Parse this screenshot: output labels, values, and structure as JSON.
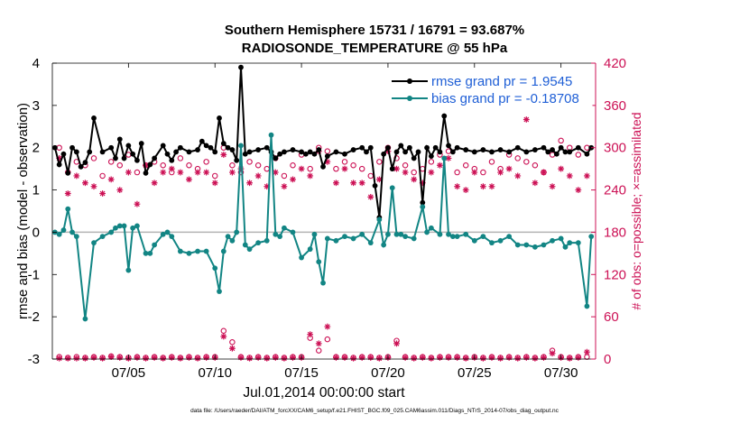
{
  "chart_data": {
    "type": "line",
    "title": "Southern Hemisphere 15731 / 16791 = 93.687%",
    "subtitle": "RADIOSONDE_TEMPERATURE @ 55 hPa",
    "xlabel": "Jul.01,2014 00:00:00 start",
    "ylabel": "rmse and bias (model - observation)",
    "ylabel_right": "# of obs: o=possible; ×=assimilated",
    "x_ticks": [
      "07/05",
      "07/10",
      "07/15",
      "07/20",
      "07/25",
      "07/30"
    ],
    "y_ticks": [
      "-3",
      "-2",
      "-1",
      "0",
      "1",
      "2",
      "3",
      "4"
    ],
    "y_right_ticks": [
      "0",
      "60",
      "120",
      "180",
      "240",
      "300",
      "360",
      "420"
    ],
    "xlim": [
      0.6,
      32.0
    ],
    "ylim": [
      -3,
      4
    ],
    "ylim_right": [
      0,
      420
    ],
    "zero_line_color": "#b4b4b4",
    "footer": "data file: /Users/raeder/DAI/ATM_forcXX/CAM6_setup/f.e21.FHIST_BGC.f09_025.CAM6assim.011/Diags_NTrS_2014-07/obs_diag_output.nc",
    "legend": {
      "position": "top-right",
      "entries": [
        "rmse grand pr = 1.9545",
        "bias grand pr = -0.18708"
      ],
      "text_color": "#1f5fd6"
    },
    "series": [
      {
        "name": "rmse grand pr = 1.9545",
        "axis": "left",
        "color": "#000000",
        "x": [
          0.75,
          1.0,
          1.25,
          1.5,
          1.75,
          2.0,
          2.25,
          2.5,
          2.75,
          3.0,
          3.5,
          4.0,
          4.25,
          4.5,
          4.75,
          5.0,
          5.25,
          5.5,
          5.75,
          6.0,
          6.25,
          6.5,
          7.0,
          7.25,
          7.5,
          7.75,
          8.0,
          8.5,
          9.0,
          9.25,
          9.5,
          9.75,
          10.0,
          10.25,
          10.5,
          10.75,
          11.0,
          11.25,
          11.5,
          11.75,
          12.0,
          12.5,
          13.0,
          13.25,
          13.5,
          13.75,
          14.0,
          14.5,
          15.0,
          15.25,
          15.5,
          15.75,
          16.0,
          16.25,
          16.5,
          17.0,
          17.5,
          18.0,
          18.5,
          18.75,
          19.0,
          19.25,
          19.5,
          19.75,
          20.0,
          20.25,
          20.5,
          20.75,
          21.0,
          21.25,
          21.5,
          21.75,
          22.0,
          22.25,
          22.5,
          22.75,
          23.0,
          23.25,
          23.5,
          23.75,
          24.0,
          24.5,
          25.0,
          25.5,
          26.0,
          26.5,
          27.0,
          27.5,
          28.0,
          28.5,
          29.0,
          29.25,
          29.5,
          29.75,
          30.0,
          30.25,
          30.5,
          31.0,
          31.5,
          31.75
        ],
        "values": [
          2.0,
          1.6,
          1.85,
          1.4,
          2.0,
          1.9,
          1.55,
          1.65,
          1.9,
          2.7,
          1.9,
          2.0,
          1.75,
          2.2,
          1.75,
          2.05,
          1.85,
          1.7,
          2.1,
          1.4,
          1.6,
          1.75,
          2.05,
          1.85,
          1.7,
          1.9,
          2.0,
          1.9,
          1.95,
          2.15,
          2.05,
          2.0,
          1.9,
          2.7,
          2.1,
          2.0,
          1.95,
          1.7,
          3.9,
          1.85,
          1.9,
          1.95,
          2.0,
          1.9,
          1.75,
          1.85,
          1.9,
          1.95,
          1.9,
          1.85,
          1.9,
          1.85,
          1.95,
          1.55,
          1.8,
          1.9,
          1.85,
          1.95,
          2.0,
          1.9,
          2.0,
          1.1,
          0.35,
          1.85,
          2.0,
          1.5,
          1.9,
          2.05,
          1.9,
          2.0,
          1.75,
          1.9,
          0.7,
          2.0,
          1.8,
          2.0,
          1.9,
          2.75,
          2.05,
          1.9,
          2.0,
          1.95,
          1.9,
          1.95,
          1.9,
          1.95,
          1.9,
          2.0,
          1.9,
          1.95,
          2.0,
          1.9,
          1.95,
          1.85,
          2.0,
          1.9,
          1.9,
          2.0,
          1.85,
          2.0
        ]
      },
      {
        "name": "bias grand pr = -0.18708",
        "axis": "left",
        "color": "#128584",
        "x": [
          0.75,
          1.0,
          1.25,
          1.5,
          1.75,
          2.0,
          2.5,
          3.0,
          3.5,
          4.0,
          4.25,
          4.5,
          4.75,
          5.0,
          5.25,
          5.5,
          6.0,
          6.25,
          6.5,
          7.0,
          7.25,
          7.5,
          8.0,
          8.5,
          9.0,
          9.5,
          10.0,
          10.25,
          10.5,
          10.75,
          11.0,
          11.25,
          11.5,
          11.75,
          12.0,
          12.5,
          13.0,
          13.25,
          13.5,
          13.75,
          14.0,
          14.5,
          15.0,
          15.5,
          15.75,
          16.0,
          16.25,
          16.5,
          17.0,
          17.5,
          18.0,
          18.5,
          19.0,
          19.5,
          19.75,
          20.0,
          20.25,
          20.5,
          20.75,
          21.0,
          21.5,
          22.0,
          22.25,
          22.5,
          23.0,
          23.25,
          23.5,
          23.75,
          24.0,
          24.5,
          25.0,
          25.5,
          26.0,
          26.5,
          27.0,
          27.5,
          28.0,
          28.5,
          29.0,
          29.5,
          30.0,
          30.25,
          30.5,
          31.0,
          31.5,
          31.75
        ],
        "values": [
          0.0,
          -0.05,
          0.05,
          0.55,
          0.0,
          -0.1,
          -2.05,
          -0.25,
          -0.1,
          0.0,
          0.1,
          0.15,
          0.15,
          -0.9,
          0.1,
          0.15,
          -0.5,
          -0.5,
          -0.3,
          -0.05,
          0.0,
          -0.1,
          -0.45,
          -0.5,
          -0.45,
          -0.45,
          -0.85,
          -1.4,
          -0.45,
          -0.1,
          -0.2,
          0.0,
          2.05,
          -0.3,
          -0.4,
          -0.25,
          -0.2,
          2.3,
          -0.05,
          -0.1,
          0.1,
          0.0,
          -0.6,
          -0.4,
          -0.05,
          -0.7,
          -1.2,
          -0.15,
          -0.2,
          -0.1,
          -0.15,
          -0.05,
          -0.25,
          0.3,
          -0.3,
          -0.05,
          1.05,
          -0.05,
          -0.05,
          -0.1,
          -0.15,
          0.6,
          0.0,
          0.1,
          -0.05,
          1.75,
          -0.05,
          -0.1,
          -0.1,
          -0.05,
          -0.2,
          -0.1,
          -0.25,
          -0.2,
          -0.1,
          -0.3,
          -0.3,
          -0.35,
          -0.3,
          -0.2,
          -0.15,
          -0.35,
          -0.25,
          -0.25,
          -1.75,
          -0.1
        ]
      },
      {
        "name": "possible",
        "axis": "right",
        "marker": "circle",
        "color": "#cc1155",
        "x": [
          1.0,
          1.5,
          2.0,
          2.5,
          3.0,
          3.5,
          4.0,
          4.5,
          5.0,
          5.5,
          6.0,
          6.5,
          7.0,
          7.5,
          8.0,
          8.5,
          9.0,
          9.5,
          10.0,
          10.5,
          11.0,
          11.5,
          12.0,
          12.5,
          13.0,
          13.5,
          14.0,
          14.5,
          15.0,
          15.5,
          16.0,
          16.5,
          17.0,
          17.5,
          18.0,
          18.5,
          19.0,
          19.5,
          20.0,
          20.5,
          21.0,
          21.5,
          22.0,
          22.5,
          23.0,
          23.5,
          24.0,
          24.5,
          25.0,
          25.5,
          26.0,
          26.5,
          27.0,
          27.5,
          28.0,
          28.5,
          29.0,
          29.5,
          30.0,
          30.5,
          31.0,
          31.5
        ],
        "values": [
          300,
          265,
          280,
          275,
          285,
          260,
          280,
          275,
          290,
          265,
          275,
          280,
          275,
          265,
          285,
          275,
          270,
          280,
          260,
          300,
          275,
          265,
          280,
          275,
          270,
          285,
          260,
          275,
          290,
          270,
          300,
          295,
          270,
          280,
          275,
          270,
          260,
          280,
          300,
          285,
          275,
          265,
          270,
          280,
          290,
          295,
          265,
          275,
          270,
          265,
          280,
          270,
          290,
          285,
          280,
          275,
          265,
          290,
          310,
          300,
          290,
          300
        ]
      },
      {
        "name": "assimilated",
        "axis": "right",
        "marker": "asterisk",
        "color": "#cc1155",
        "x": [
          1.0,
          1.5,
          2.0,
          2.5,
          3.0,
          3.5,
          4.0,
          4.5,
          5.0,
          5.5,
          6.0,
          6.5,
          7.0,
          7.5,
          8.0,
          8.5,
          9.0,
          9.5,
          10.0,
          10.5,
          11.0,
          11.5,
          12.0,
          12.5,
          13.0,
          13.5,
          14.0,
          14.5,
          15.0,
          15.5,
          16.0,
          16.5,
          17.0,
          17.5,
          18.0,
          18.5,
          19.0,
          19.5,
          20.0,
          20.5,
          21.0,
          21.5,
          22.0,
          22.5,
          23.0,
          23.5,
          24.0,
          24.5,
          25.0,
          25.5,
          26.0,
          26.5,
          27.0,
          27.5,
          28.0,
          28.5,
          29.0,
          29.5,
          30.0,
          30.5,
          31.0,
          31.5
        ],
        "values": [
          285,
          235,
          260,
          250,
          245,
          235,
          255,
          240,
          265,
          220,
          275,
          250,
          265,
          270,
          265,
          255,
          265,
          265,
          250,
          290,
          265,
          270,
          250,
          260,
          245,
          265,
          245,
          255,
          270,
          260,
          295,
          280,
          250,
          270,
          250,
          250,
          230,
          255,
          295,
          270,
          265,
          255,
          250,
          265,
          275,
          285,
          245,
          240,
          265,
          245,
          245,
          265,
          270,
          260,
          340,
          250,
          265,
          245,
          270,
          260,
          240,
          260
        ]
      },
      {
        "name": "possible (bottom)",
        "axis": "right",
        "marker": "circle",
        "color": "#cc1155",
        "x": [
          1.0,
          1.5,
          2.0,
          2.5,
          3.0,
          3.5,
          4.0,
          4.5,
          5.0,
          5.5,
          6.0,
          6.5,
          7.0,
          7.5,
          8.0,
          8.5,
          9.0,
          9.5,
          10.0,
          10.5,
          11.0,
          11.5,
          12.0,
          12.5,
          13.0,
          13.5,
          14.0,
          14.5,
          15.0,
          15.5,
          16.0,
          16.5,
          17.0,
          17.5,
          18.0,
          18.5,
          19.0,
          19.5,
          20.0,
          20.5,
          21.0,
          21.5,
          22.0,
          22.5,
          23.0,
          23.5,
          24.0,
          24.5,
          25.0,
          25.5,
          26.0,
          26.5,
          27.0,
          27.5,
          28.0,
          28.5,
          29.0,
          29.5,
          30.0,
          30.5,
          31.0,
          31.5
        ],
        "values": [
          3,
          2,
          3,
          2,
          3,
          2,
          4,
          3,
          2,
          3,
          2,
          3,
          2,
          3,
          2,
          3,
          2,
          3,
          3,
          40,
          24,
          3,
          2,
          3,
          2,
          3,
          2,
          3,
          3,
          30,
          12,
          28,
          3,
          3,
          2,
          3,
          3,
          2,
          3,
          26,
          3,
          2,
          3,
          2,
          3,
          3,
          3,
          2,
          3,
          2,
          3,
          2,
          3,
          2,
          3,
          2,
          3,
          12,
          3,
          2,
          3,
          3
        ]
      },
      {
        "name": "assimilated (bottom)",
        "axis": "right",
        "marker": "asterisk",
        "color": "#cc1155",
        "x": [
          1.0,
          1.5,
          2.0,
          2.5,
          3.0,
          3.5,
          4.0,
          4.5,
          5.0,
          5.5,
          6.0,
          6.5,
          7.0,
          7.5,
          8.0,
          8.5,
          9.0,
          9.5,
          10.0,
          10.5,
          11.0,
          11.5,
          12.0,
          12.5,
          13.0,
          13.5,
          14.0,
          14.5,
          15.0,
          15.5,
          16.0,
          16.5,
          17.0,
          17.5,
          18.0,
          18.5,
          19.0,
          19.5,
          20.0,
          20.5,
          21.0,
          21.5,
          22.0,
          22.5,
          23.0,
          23.5,
          24.0,
          24.5,
          25.0,
          25.5,
          26.0,
          26.5,
          27.0,
          27.5,
          28.0,
          28.5,
          29.0,
          29.5,
          30.0,
          30.5,
          31.0,
          31.5
        ],
        "values": [
          1,
          1,
          1,
          1,
          2,
          1,
          3,
          2,
          1,
          2,
          1,
          2,
          1,
          2,
          1,
          2,
          1,
          2,
          2,
          32,
          15,
          2,
          1,
          2,
          1,
          2,
          1,
          2,
          2,
          35,
          22,
          46,
          2,
          2,
          1,
          2,
          2,
          1,
          2,
          22,
          2,
          1,
          2,
          1,
          2,
          2,
          2,
          1,
          2,
          1,
          2,
          1,
          2,
          1,
          2,
          1,
          2,
          8,
          2,
          1,
          2,
          10
        ]
      }
    ]
  }
}
